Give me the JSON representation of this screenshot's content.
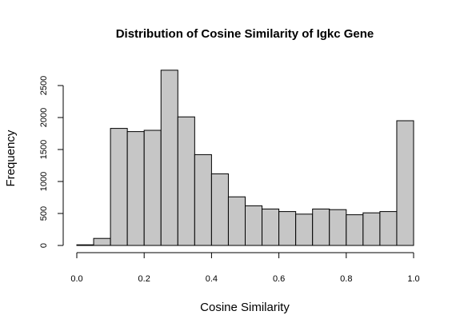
{
  "chart_data": {
    "type": "histogram",
    "title": "Distribution of Cosine Similarity of Igkc Gene",
    "xlabel": "Cosine Similarity",
    "ylabel": "Frequency",
    "xlim": [
      0.0,
      1.0
    ],
    "ylim": [
      0,
      2750
    ],
    "x_ticks": [
      0.0,
      0.2,
      0.4,
      0.6,
      0.8,
      1.0
    ],
    "x_tick_labels": [
      "0.0",
      "0.2",
      "0.4",
      "0.6",
      "0.8",
      "1.0"
    ],
    "y_ticks": [
      0,
      500,
      1000,
      1500,
      2000,
      2500
    ],
    "y_tick_labels": [
      "0",
      "500",
      "1000",
      "1500",
      "2000",
      "2500"
    ],
    "bin_width": 0.05,
    "bins": [
      0.0,
      0.05,
      0.1,
      0.15,
      0.2,
      0.25,
      0.3,
      0.35,
      0.4,
      0.45,
      0.5,
      0.55,
      0.6,
      0.65,
      0.7,
      0.75,
      0.8,
      0.85,
      0.9,
      0.95
    ],
    "values": [
      10,
      110,
      1830,
      1780,
      1800,
      2740,
      2010,
      1420,
      1120,
      760,
      620,
      570,
      530,
      490,
      570,
      560,
      480,
      510,
      530,
      1950
    ],
    "bar_color": "#c6c6c6",
    "grid": false,
    "legend": "none"
  }
}
